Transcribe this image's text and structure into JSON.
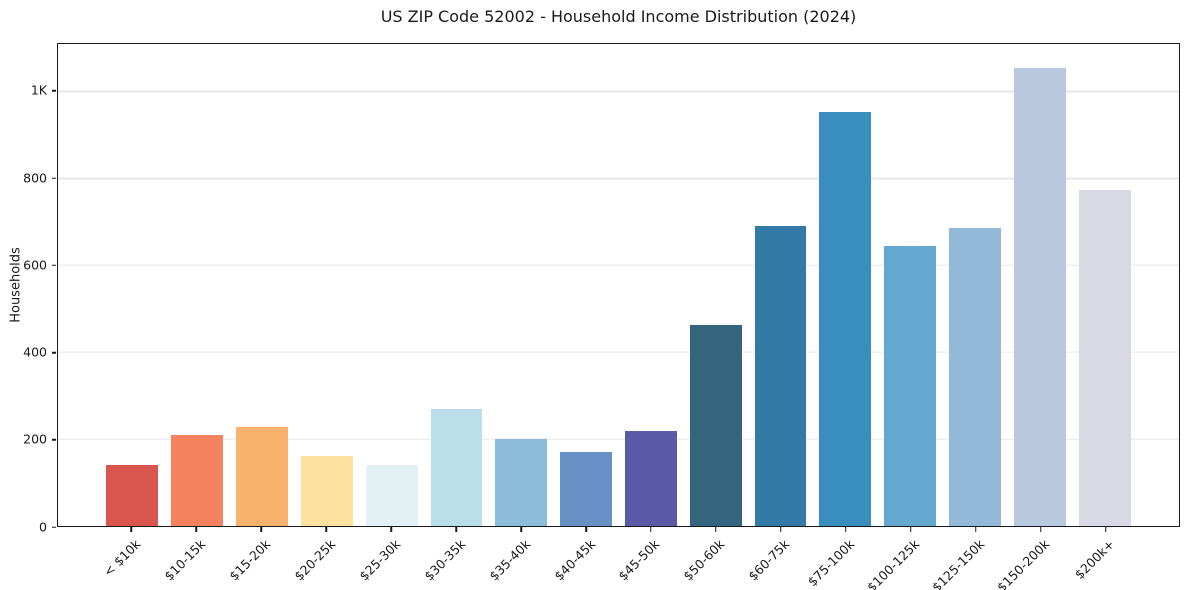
{
  "chart_data": {
    "type": "bar",
    "title": "US ZIP Code 52002 - Household Income Distribution (2024)",
    "xlabel": "",
    "ylabel": "Households",
    "categories": [
      "< $10k",
      "$10-15k",
      "$15-20k",
      "$20-25k",
      "$25-30k",
      "$30-35k",
      "$35-40k",
      "$40-45k",
      "$45-50k",
      "$50-60k",
      "$60-75k",
      "$75-100k",
      "$100-125k",
      "$125-150k",
      "$150-200k",
      "$200k+"
    ],
    "values": [
      140,
      209,
      229,
      161,
      140,
      270,
      200,
      170,
      218,
      463,
      691,
      953,
      645,
      687,
      1055,
      774
    ],
    "bar_colors": [
      "#d9564f",
      "#f4825f",
      "#f9b26b",
      "#fce29e",
      "#e3f0f4",
      "#bcdeea",
      "#8cbcd9",
      "#6890c5",
      "#5c5aa8",
      "#34647e",
      "#337ba6",
      "#3a8dbf",
      "#62a8cf",
      "#92bad8",
      "#b7c8df",
      "#d8d9e4"
    ],
    "ylim": [
      0,
      1110
    ],
    "ytick_values": [
      0,
      200,
      400,
      600,
      800,
      1000
    ],
    "ytick_labels": [
      "0",
      "200",
      "400",
      "600",
      "800",
      "1K"
    ],
    "grid": "horizontal",
    "legend_position": "none",
    "colors": {
      "background": "#ffffff",
      "spine": "#1a1a1a",
      "gridline": "#e7e7e7",
      "text": "#1a1a1a"
    }
  }
}
